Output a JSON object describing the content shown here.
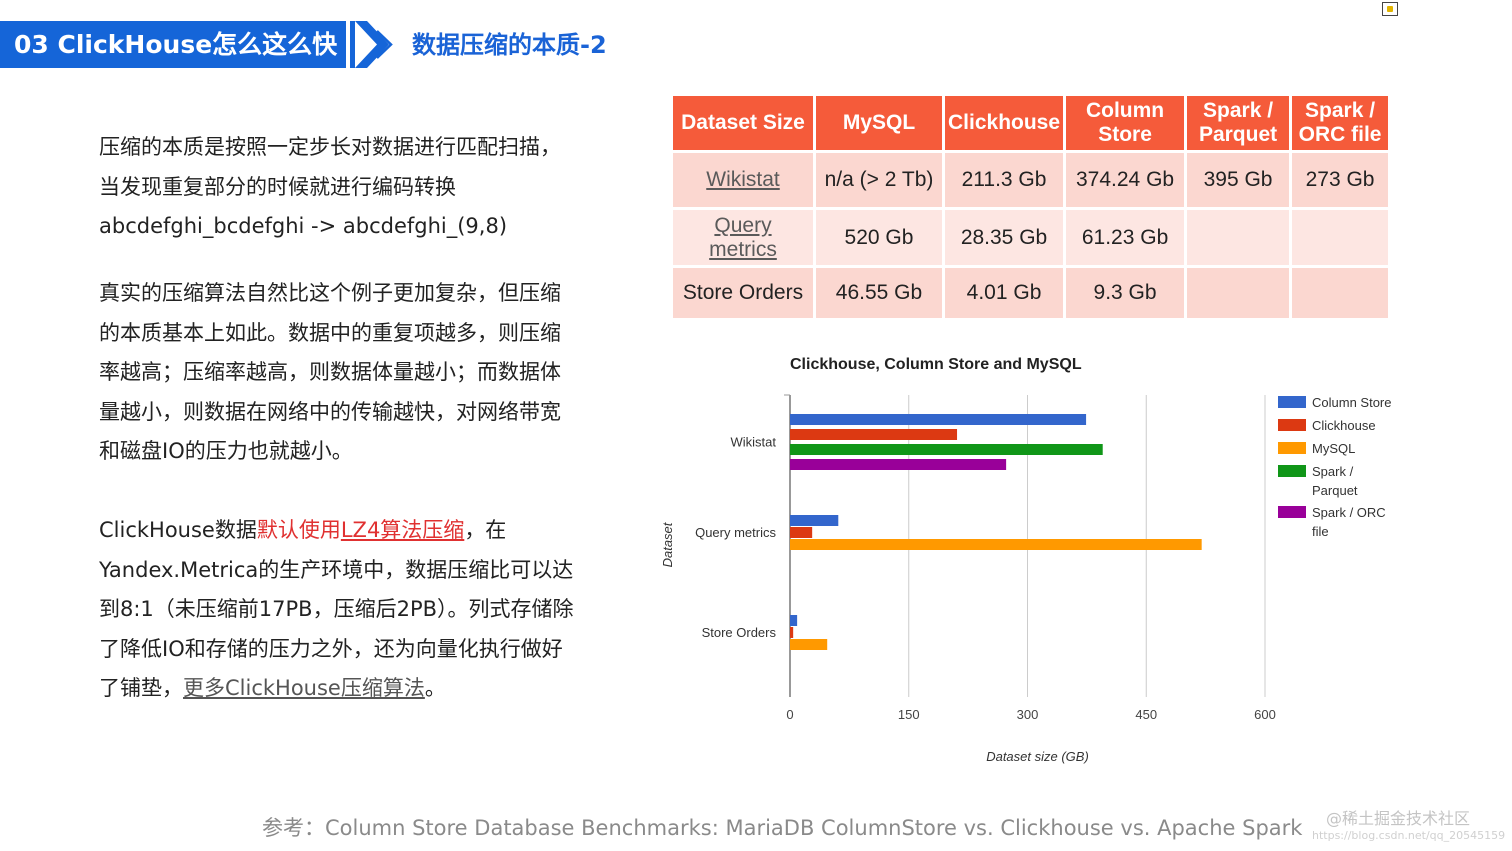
{
  "header": {
    "section": "03  ClickHouse怎么这么快",
    "subtitle": "数据压缩的本质-2"
  },
  "body": {
    "p1": [
      "压缩的本质是按照一定步长对数据进行匹配扫描，",
      "当发现重复部分的时候就进行编码转换",
      "abcdefghi_bcdefghi -> abcdefghi_(9,8)"
    ],
    "p2": [
      "真实的压缩算法自然比这个例子更加复杂，但压缩",
      "的本质基本上如此。数据中的重复项越多，则压缩",
      "率越高；压缩率越高，则数据体量越小；而数据体",
      "量越小，则数据在网络中的传输越快，对网络带宽",
      "和磁盘IO的压力也就越小。"
    ],
    "p3": {
      "l1_a": "ClickHouse数据",
      "l1_red": "默认使用",
      "l1_link": "LZ4算法压缩",
      "l1_b": "，在",
      "l2": "Yandex.Metrica的生产环境中，数据压缩比可以达",
      "l3": "到8:1（未压缩前17PB，压缩后2PB）。列式存储除",
      "l4": "了降低IO和存储的压力之外，还为向量化执行做好",
      "l5_a": "了铺垫，",
      "l5_link": "更多ClickHouse压缩算法",
      "l5_b": "。"
    }
  },
  "table": {
    "headers": {
      "dataset": "Dataset Size",
      "mysql": "MySQL",
      "clickhouse": "Clickhouse",
      "colstore_1": "Column",
      "colstore_2": "Store",
      "parquet_1": "Spark /",
      "parquet_2": "Parquet",
      "orc_1": "Spark /",
      "orc_2": "ORC file"
    },
    "rows": [
      {
        "dataset": "Wikistat",
        "mysql": "n/a (> 2 Tb)",
        "clickhouse": "211.3 Gb",
        "colstore": "374.24 Gb",
        "parquet": "395 Gb",
        "orc": "273 Gb"
      },
      {
        "dataset_1": "Query",
        "dataset_2": "metrics",
        "mysql": "520 Gb",
        "clickhouse": "28.35 Gb",
        "colstore": "61.23 Gb",
        "parquet": "",
        "orc": ""
      },
      {
        "dataset": "Store Orders",
        "mysql": "46.55 Gb",
        "clickhouse": "4.01 Gb",
        "colstore": "9.3 Gb",
        "parquet": "",
        "orc": ""
      }
    ]
  },
  "chart_data": {
    "type": "bar",
    "orientation": "horizontal",
    "title": "Clickhouse, Column Store and MySQL",
    "xlabel": "Dataset size (GB)",
    "ylabel": "Dataset",
    "categories": [
      "Wikistat",
      "Query metrics",
      "Store Orders"
    ],
    "xlim": [
      0,
      600
    ],
    "xticks": [
      "0",
      "150",
      "300",
      "450",
      "600"
    ],
    "grid": true,
    "legend_position": "right",
    "series": [
      {
        "name": "Column Store",
        "color": "#3366cc",
        "values": [
          374,
          61,
          9
        ]
      },
      {
        "name": "Clickhouse",
        "color": "#dc3912",
        "values": [
          211,
          28,
          4
        ]
      },
      {
        "name": "MySQL",
        "color": "#ff9900",
        "values": [
          null,
          520,
          47
        ]
      },
      {
        "name": "Spark / Parquet",
        "color": "#109618",
        "values": [
          395,
          null,
          null
        ]
      },
      {
        "name": "Spark / ORC file",
        "color": "#990099",
        "values": [
          273,
          null,
          null
        ]
      }
    ],
    "legend_lines": [
      [
        "Column Store"
      ],
      [
        "Clickhouse"
      ],
      [
        "MySQL"
      ],
      [
        "Spark /",
        "Parquet"
      ],
      [
        "Spark / ORC",
        "file"
      ]
    ]
  },
  "footer": {
    "reference": "参考：Column Store Database Benchmarks: MariaDB ColumnStore vs. Clickhouse vs. Apache Spark",
    "watermark": "@稀土掘金技术社区",
    "watermark_url": "https://blog.csdn.net/qq_20545159"
  }
}
